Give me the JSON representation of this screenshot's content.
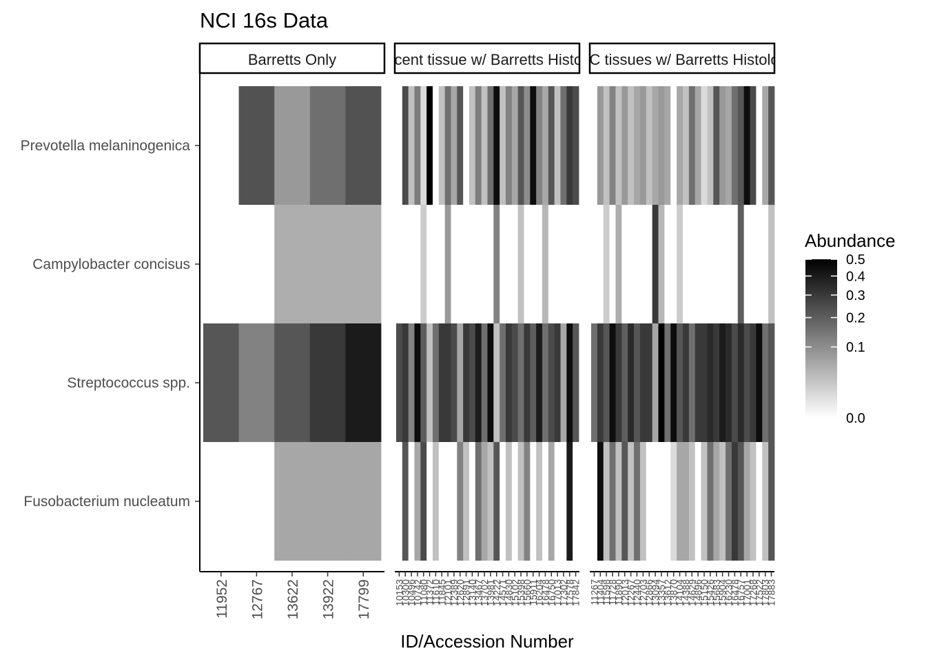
{
  "chart_data": {
    "type": "heatmap",
    "title": "NCI 16s Data",
    "xlabel": "ID/Accession Number",
    "ylabel": "",
    "rows": [
      "Prevotella melaninogenica",
      "Campylobacter concisus",
      "Streptococcus spp.",
      "Fusobacterium nucleatum"
    ],
    "color_scale": {
      "low": "#ffffff",
      "high": "#000000",
      "transform": "sqrt",
      "range": [
        0,
        0.5
      ]
    },
    "legend": {
      "title": "Abundance",
      "ticks": [
        "0.0",
        "0.1",
        "0.2",
        "0.3",
        "0.4",
        "0.5"
      ],
      "placement": "right"
    },
    "facets": [
      {
        "label": "Barretts Only",
        "columns": [
          "11952",
          "12767",
          "13622",
          "13922",
          "17799"
        ],
        "values": [
          [
            0,
            0.23,
            0.08,
            0.16,
            0.23
          ],
          [
            0,
            0,
            0.05,
            0.05,
            0.05
          ],
          [
            0.22,
            0.12,
            0.22,
            0.3,
            0.4
          ],
          [
            0,
            0,
            0.06,
            0.06,
            0.06
          ]
        ]
      },
      {
        "label": "Adjacent tissue w/ Barretts Histology",
        "columns": [
          "10153",
          "10300",
          "10496",
          "10742",
          "11080",
          "11372",
          "11610",
          "11845",
          "12101",
          "12389",
          "12620",
          "12891",
          "13140",
          "13467",
          "13702",
          "13981",
          "14222",
          "14571",
          "14830",
          "15102",
          "15398",
          "15660",
          "15911",
          "16204",
          "16478",
          "16750",
          "17013",
          "17302",
          "17578",
          "17842"
        ],
        "values": [
          [
            0,
            0.25,
            0.03,
            0.13,
            0.01,
            0.5,
            0,
            0.03,
            0.16,
            0.06,
            0.22,
            0,
            0.03,
            0.13,
            0.03,
            0.16,
            0.45,
            0.03,
            0.12,
            0.06,
            0.22,
            0.1,
            0.45,
            0.12,
            0.06,
            0.22,
            0.03,
            0.16,
            0.3,
            0.25
          ],
          [
            0,
            0,
            0,
            0,
            0.02,
            0,
            0,
            0,
            0.08,
            0,
            0,
            0,
            0,
            0,
            0,
            0,
            0.12,
            0,
            0,
            0,
            0.03,
            0,
            0,
            0,
            0.04,
            0,
            0,
            0,
            0,
            0
          ],
          [
            0.25,
            0.3,
            0.12,
            0.45,
            0.2,
            0.03,
            0.16,
            0.3,
            0.3,
            0.25,
            0.06,
            0.3,
            0.25,
            0.4,
            0.16,
            0.45,
            0.03,
            0.16,
            0.3,
            0.25,
            0.16,
            0.3,
            0.2,
            0.4,
            0.16,
            0.25,
            0.3,
            0.06,
            0.45,
            0.22
          ],
          [
            0,
            0.22,
            0,
            0.06,
            0.25,
            0,
            0.03,
            0,
            0,
            0,
            0.12,
            0.03,
            0,
            0.16,
            0.06,
            0.03,
            0.22,
            0,
            0.03,
            0,
            0.03,
            0.12,
            0,
            0.03,
            0,
            0.06,
            0,
            0,
            0.4,
            0
          ]
        ]
      },
      {
        "label": "EAC tissues w/ Barretts Histology",
        "columns": [
          "11267",
          "11404",
          "11598",
          "11728",
          "11890",
          "12013",
          "12267",
          "12440",
          "12703",
          "12866",
          "13094",
          "13357",
          "13612",
          "13870",
          "14104",
          "14388",
          "14629",
          "14896",
          "15150",
          "15426",
          "15683",
          "15904",
          "16230",
          "16478",
          "16757",
          "17001",
          "17268",
          "17522",
          "17803",
          "17883"
        ],
        "values": [
          [
            0,
            0.08,
            0.03,
            0.12,
            0.03,
            0.08,
            0.03,
            0.06,
            0.08,
            0.03,
            0.06,
            0.08,
            0.06,
            0,
            0.06,
            0.03,
            0.16,
            0.06,
            0.01,
            0.03,
            0.22,
            0.08,
            0.06,
            0.16,
            0.22,
            0.45,
            0.25,
            0,
            0.06,
            0.22
          ],
          [
            0,
            0,
            0.02,
            0,
            0.05,
            0,
            0,
            0,
            0,
            0,
            0.3,
            0.04,
            0,
            0,
            0.02,
            0,
            0,
            0,
            0,
            0,
            0,
            0,
            0,
            0,
            0.2,
            0,
            0,
            0,
            0,
            0.03
          ],
          [
            0.16,
            0.3,
            0.22,
            0.45,
            0.3,
            0.2,
            0.35,
            0.22,
            0.3,
            0.3,
            0.06,
            0.5,
            0.16,
            0.45,
            0.22,
            0.3,
            0.16,
            0.3,
            0.3,
            0.35,
            0.3,
            0.4,
            0.35,
            0.25,
            0.35,
            0.25,
            0.3,
            0.45,
            0.16,
            0.22
          ],
          [
            0,
            0.45,
            0.03,
            0.16,
            0.03,
            0.22,
            0.03,
            0.16,
            0.03,
            0,
            0,
            0,
            0,
            0.01,
            0.06,
            0.06,
            0.03,
            0,
            0.03,
            0.16,
            0.06,
            0.03,
            0.16,
            0.3,
            0.22,
            0.06,
            0.03,
            0,
            0.03,
            0.22
          ]
        ]
      }
    ]
  }
}
